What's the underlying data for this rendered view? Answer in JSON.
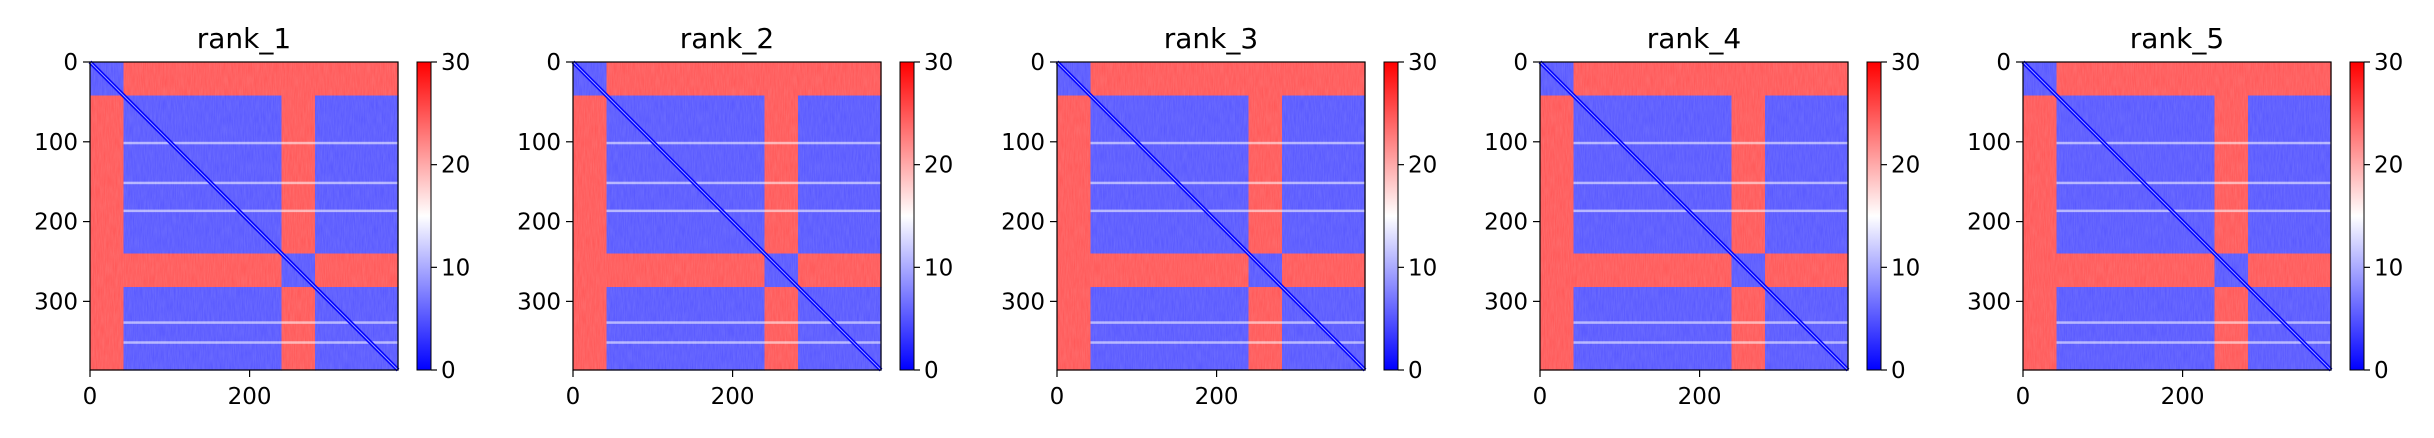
{
  "chart_data": [
    {
      "type": "heatmap",
      "title": "rank_1",
      "xlim": [
        0,
        386
      ],
      "ylim": [
        386,
        0
      ],
      "xticks": [
        0,
        200
      ],
      "yticks": [
        0,
        100,
        200,
        300
      ],
      "colorbar": {
        "min": 0,
        "max": 30,
        "ticks": [
          0,
          10,
          20,
          30
        ],
        "colormap": "bwr"
      },
      "blocks": [
        [
          0,
          42
        ],
        [
          42,
          240
        ],
        [
          240,
          282
        ],
        [
          282,
          386
        ]
      ],
      "inter_domain_distance_approx": 25,
      "intra_domain_distance_approx": 5
    },
    {
      "type": "heatmap",
      "title": "rank_2",
      "xlim": [
        0,
        386
      ],
      "ylim": [
        386,
        0
      ],
      "xticks": [
        0,
        200
      ],
      "yticks": [
        0,
        100,
        200,
        300
      ],
      "colorbar": {
        "min": 0,
        "max": 30,
        "ticks": [
          0,
          10,
          20,
          30
        ],
        "colormap": "bwr"
      },
      "blocks": [
        [
          0,
          42
        ],
        [
          42,
          240
        ],
        [
          240,
          282
        ],
        [
          282,
          386
        ]
      ],
      "inter_domain_distance_approx": 25,
      "intra_domain_distance_approx": 5
    },
    {
      "type": "heatmap",
      "title": "rank_3",
      "xlim": [
        0,
        386
      ],
      "ylim": [
        386,
        0
      ],
      "xticks": [
        0,
        200
      ],
      "yticks": [
        0,
        100,
        200,
        300
      ],
      "colorbar": {
        "min": 0,
        "max": 30,
        "ticks": [
          0,
          10,
          20,
          30
        ],
        "colormap": "bwr"
      },
      "blocks": [
        [
          0,
          42
        ],
        [
          42,
          240
        ],
        [
          240,
          282
        ],
        [
          282,
          386
        ]
      ],
      "inter_domain_distance_approx": 25,
      "intra_domain_distance_approx": 5
    },
    {
      "type": "heatmap",
      "title": "rank_4",
      "xlim": [
        0,
        386
      ],
      "ylim": [
        386,
        0
      ],
      "xticks": [
        0,
        200
      ],
      "yticks": [
        0,
        100,
        200,
        300
      ],
      "colorbar": {
        "min": 0,
        "max": 30,
        "ticks": [
          0,
          10,
          20,
          30
        ],
        "colormap": "bwr"
      },
      "blocks": [
        [
          0,
          42
        ],
        [
          42,
          240
        ],
        [
          240,
          282
        ],
        [
          282,
          386
        ]
      ],
      "inter_domain_distance_approx": 25,
      "intra_domain_distance_approx": 5
    },
    {
      "type": "heatmap",
      "title": "rank_5",
      "xlim": [
        0,
        386
      ],
      "ylim": [
        386,
        0
      ],
      "xticks": [
        0,
        200
      ],
      "yticks": [
        0,
        100,
        200,
        300
      ],
      "colorbar": {
        "min": 0,
        "max": 30,
        "ticks": [
          0,
          10,
          20,
          30
        ],
        "colormap": "bwr"
      },
      "blocks": [
        [
          0,
          42
        ],
        [
          42,
          240
        ],
        [
          240,
          282
        ],
        [
          282,
          386
        ]
      ],
      "inter_domain_distance_approx": 25,
      "intra_domain_distance_approx": 5
    }
  ],
  "colors": {
    "low": "#0000ff",
    "mid": "#ffffff",
    "high": "#ff0000",
    "axis": "#000000"
  }
}
